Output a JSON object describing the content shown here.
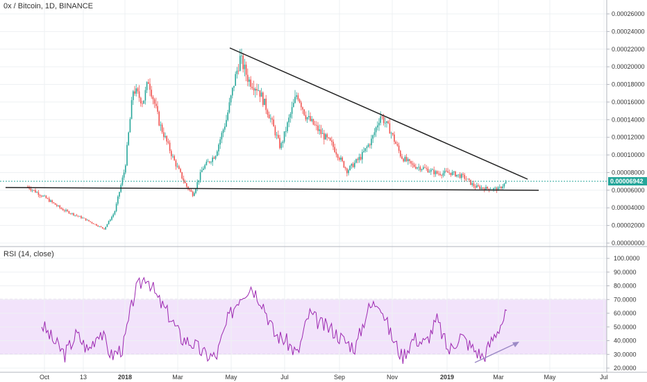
{
  "header": {
    "symbol_title": "0x / Bitcoin, 1D, BINANCE",
    "rsi_title": "RSI (14, close)"
  },
  "colors": {
    "up": "#26a69a",
    "down": "#ef5350",
    "trendline": "#222222",
    "rsi_line": "#9c27b0",
    "rsi_band": "#f2e3fb",
    "price_tag": "#26a69a",
    "arrow": "#9c8ac6"
  },
  "price_axis": {
    "labels": [
      "0.00026000",
      "0.00024000",
      "0.00022000",
      "0.00020000",
      "0.00018000",
      "0.00016000",
      "0.00014000",
      "0.00012000",
      "0.00010000",
      "0.00008000",
      "0.00006000",
      "0.00004000",
      "0.00002000",
      "0.00000000"
    ],
    "last_price_label": "0.00006942"
  },
  "rsi_axis": {
    "labels": [
      "100.0000",
      "90.0000",
      "80.0000",
      "70.0000",
      "60.0000",
      "50.0000",
      "40.0000",
      "30.0000",
      "20.0000"
    ]
  },
  "time_axis": {
    "labels": [
      "Oct",
      "13",
      "2018",
      "Mar",
      "May",
      "Jul",
      "Sep",
      "Nov",
      "2019",
      "Mar",
      "May",
      "Jul"
    ]
  },
  "chart_data": [
    {
      "type": "candlestick",
      "title": "0x / Bitcoin, 1D, BINANCE",
      "ylim": [
        0,
        0.00026
      ],
      "last_price": 6.942e-05,
      "x_ticks": [
        "Oct",
        "13",
        "2018",
        "Mar",
        "May",
        "Jul",
        "Sep",
        "Nov",
        "2019",
        "Mar",
        "May",
        "Jul"
      ],
      "price_path": [
        [
          "Oct",
          6.3e-05
        ],
        [
          "13",
          2.8e-05
        ],
        [
          "late Dec 2017",
          1.5e-05
        ],
        [
          "2018",
          8e-05
        ],
        [
          "mid Jan 2018",
          0.000195
        ],
        [
          "Mar",
          6e-05
        ],
        [
          "May",
          0.00021
        ],
        [
          "Jul",
          0.000175
        ],
        [
          "Sep",
          9e-05
        ],
        [
          "Oct 2018",
          0.000148
        ],
        [
          "Nov",
          0.00011
        ],
        [
          "2019",
          7.5e-05
        ],
        [
          "Mar",
          6.94e-05
        ]
      ],
      "trendlines": [
        {
          "name": "descending resistance",
          "from": [
            "May",
            0.00022
          ],
          "to": [
            "Apr 2019",
            7e-05
          ]
        },
        {
          "name": "horizontal support",
          "from": [
            "Sep 2017",
            6e-05
          ],
          "to": [
            "Apr 2019",
            6e-05
          ]
        }
      ]
    },
    {
      "type": "line",
      "title": "RSI (14, close)",
      "ylim": [
        20,
        100
      ],
      "band": [
        30,
        70
      ],
      "x_ticks": [
        "Oct",
        "13",
        "2018",
        "Mar",
        "May",
        "Jul",
        "Sep",
        "Nov",
        "2019",
        "Mar",
        "May",
        "Jul"
      ],
      "series": [
        {
          "values": [
            52,
            40,
            30,
            45,
            33,
            48,
            29,
            35,
            75,
            88,
            70,
            58,
            42,
            38,
            30,
            28,
            55,
            72,
            80,
            68,
            45,
            40,
            30,
            60,
            52,
            48,
            40,
            35,
            62,
            70,
            45,
            28,
            42,
            38,
            55,
            32,
            44,
            35,
            28,
            45,
            60
          ]
        }
      ]
    }
  ]
}
